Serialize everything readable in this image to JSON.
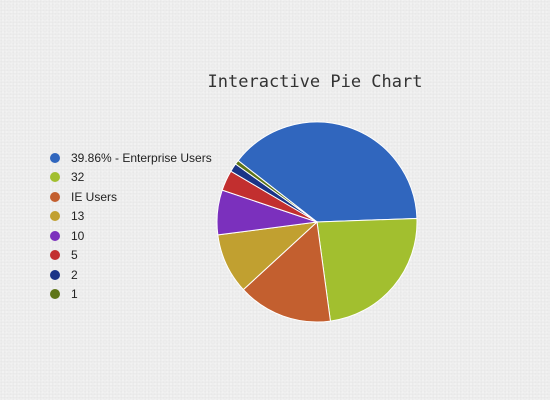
{
  "chart_data": {
    "type": "pie",
    "title": "Interactive Pie Chart",
    "legend_position": "left",
    "slices": [
      {
        "label": "39.86% - Enterprise Users",
        "value": 39.86,
        "color": "#3066be"
      },
      {
        "label": "32",
        "value": 24.0,
        "color": "#a2bf2f"
      },
      {
        "label": "IE Users",
        "value": 15.7,
        "color": "#c35f2f"
      },
      {
        "label": "13",
        "value": 10.0,
        "color": "#c1a030"
      },
      {
        "label": "10",
        "value": 7.4,
        "color": "#7b30bd"
      },
      {
        "label": "5",
        "value": 3.4,
        "color": "#c22f2f"
      },
      {
        "label": "2",
        "value": 1.4,
        "color": "#1a3487"
      },
      {
        "label": "1",
        "value": 0.7,
        "color": "#5e7518"
      }
    ]
  }
}
